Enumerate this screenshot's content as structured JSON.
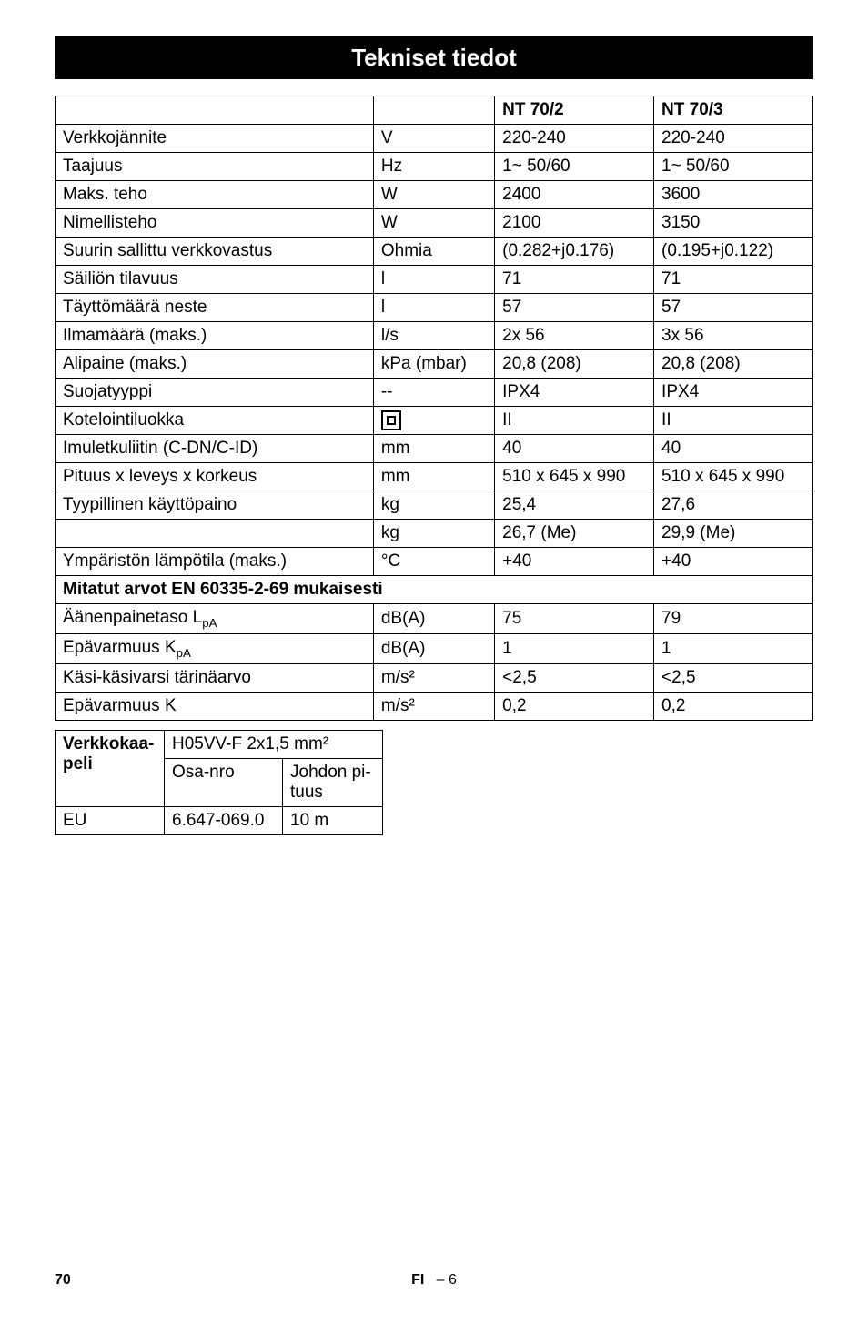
{
  "title": "Tekniset tiedot",
  "table": {
    "header": {
      "m1": "NT 70/2",
      "m2": "NT 70/3"
    },
    "rows": [
      {
        "label": "Verkkojännite",
        "unit": "V",
        "v1": "220-240",
        "v2": "220-240"
      },
      {
        "label": "Taajuus",
        "unit": "Hz",
        "v1": "1~ 50/60",
        "v2": "1~ 50/60"
      },
      {
        "label": "Maks. teho",
        "unit": "W",
        "v1": "2400",
        "v2": "3600"
      },
      {
        "label": "Nimellisteho",
        "unit": "W",
        "v1": "2100",
        "v2": "3150"
      },
      {
        "label": "Suurin sallittu verkkovastus",
        "unit": "Ohmia",
        "v1": "(0.282+j0.176)",
        "v2": "(0.195+j0.122)"
      },
      {
        "label": "Säiliön tilavuus",
        "unit": "l",
        "v1": "71",
        "v2": "71"
      },
      {
        "label": "Täyttömäärä neste",
        "unit": "l",
        "v1": "57",
        "v2": "57"
      },
      {
        "label": "Ilmamäärä (maks.)",
        "unit": "l/s",
        "v1": "2x 56",
        "v2": "3x 56"
      },
      {
        "label": "Alipaine (maks.)",
        "unit": "kPa (mbar)",
        "v1": "20,8 (208)",
        "v2": "20,8 (208)"
      },
      {
        "label": "Suojatyyppi",
        "unit": "--",
        "v1": "IPX4",
        "v2": "IPX4"
      },
      {
        "label": "Kotelointiluokka",
        "unit": "__CLASS2__",
        "v1": "II",
        "v2": "II"
      },
      {
        "label": "Imuletkuliitin (C-DN/C-ID)",
        "unit": "mm",
        "v1": "40",
        "v2": "40"
      },
      {
        "label": "Pituus x leveys x korkeus",
        "unit": "mm",
        "v1": "510 x 645 x 990",
        "v2": "510 x 645 x 990"
      },
      {
        "label": "Tyypillinen käyttöpaino",
        "unit": "kg",
        "v1": "25,4",
        "v2": "27,6"
      },
      {
        "label": "",
        "unit": "kg",
        "v1": "26,7 (Me)",
        "v2": "29,9 (Me)"
      },
      {
        "label": "Ympäristön lämpötila (maks.)",
        "unit": "°C",
        "v1": "+40",
        "v2": "+40"
      }
    ],
    "section": "Mitatut arvot EN 60335-2-69 mukaisesti",
    "rows2": [
      {
        "label_html": "Äänenpainetaso L<sub>pA</sub>",
        "unit": "dB(A)",
        "v1": "75",
        "v2": "79"
      },
      {
        "label_html": "Epävarmuus K<sub>pA</sub>",
        "unit": "dB(A)",
        "v1": "1",
        "v2": "1"
      },
      {
        "label_html": "Käsi-käsivarsi tärinäarvo",
        "unit": "m/s²",
        "v1": "<2,5",
        "v2": "<2,5"
      },
      {
        "label_html": "Epävarmuus K",
        "unit": "m/s²",
        "v1": "0,2",
        "v2": "0,2"
      }
    ]
  },
  "cable": {
    "title": "Verkkokaa-peli",
    "spec": "H05VV-F 2x1,5 mm²",
    "h_partno": "Osa-nro",
    "h_length": "Johdon pi-tuus",
    "region": "EU",
    "partno": "6.647-069.0",
    "length": "10 m"
  },
  "footer": {
    "page": "70",
    "lang": "FI",
    "sub": "– 6"
  }
}
